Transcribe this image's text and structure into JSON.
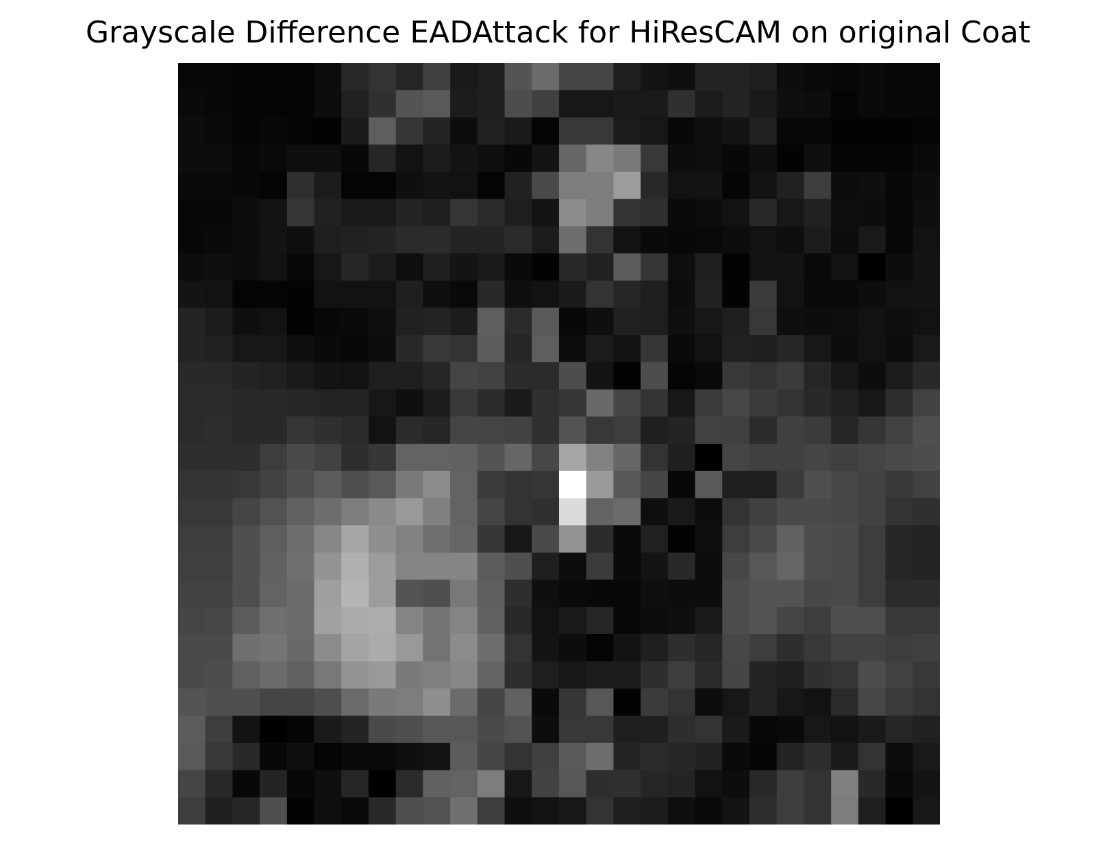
{
  "chart_data": {
    "type": "heatmap",
    "title": "Grayscale Difference EADAttack for HiResCAM on original Coat",
    "xlabel": "",
    "ylabel": "",
    "colormap": "gray",
    "axes": "off",
    "rows": 28,
    "cols": 28,
    "value_range": [
      0,
      1
    ],
    "values": [
      [
        0.03,
        0.03,
        0.02,
        0.02,
        0.02,
        0.05,
        0.16,
        0.2,
        0.15,
        0.25,
        0.1,
        0.12,
        0.33,
        0.42,
        0.27,
        0.27,
        0.12,
        0.08,
        0.06,
        0.14,
        0.14,
        0.12,
        0.05,
        0.04,
        0.03,
        0.04,
        0.03,
        0.03
      ],
      [
        0.04,
        0.03,
        0.02,
        0.02,
        0.02,
        0.05,
        0.13,
        0.19,
        0.33,
        0.35,
        0.11,
        0.12,
        0.3,
        0.25,
        0.09,
        0.09,
        0.1,
        0.1,
        0.19,
        0.11,
        0.14,
        0.1,
        0.06,
        0.05,
        0.02,
        0.04,
        0.03,
        0.03
      ],
      [
        0.05,
        0.04,
        0.02,
        0.03,
        0.02,
        0.01,
        0.1,
        0.37,
        0.21,
        0.14,
        0.05,
        0.13,
        0.1,
        0.02,
        0.22,
        0.22,
        0.11,
        0.09,
        0.03,
        0.06,
        0.08,
        0.13,
        0.03,
        0.03,
        0.01,
        0.01,
        0.01,
        0.02
      ],
      [
        0.05,
        0.05,
        0.03,
        0.04,
        0.06,
        0.06,
        0.03,
        0.15,
        0.07,
        0.11,
        0.08,
        0.06,
        0.03,
        0.08,
        0.4,
        0.53,
        0.48,
        0.22,
        0.05,
        0.06,
        0.03,
        0.06,
        0.01,
        0.06,
        0.02,
        0.02,
        0.02,
        0.04
      ],
      [
        0.04,
        0.04,
        0.03,
        0.02,
        0.19,
        0.11,
        0.02,
        0.02,
        0.06,
        0.08,
        0.07,
        0.02,
        0.13,
        0.29,
        0.49,
        0.49,
        0.61,
        0.16,
        0.07,
        0.08,
        0.02,
        0.07,
        0.13,
        0.24,
        0.05,
        0.06,
        0.03,
        0.05
      ],
      [
        0.03,
        0.03,
        0.05,
        0.07,
        0.21,
        0.13,
        0.1,
        0.1,
        0.14,
        0.12,
        0.21,
        0.17,
        0.12,
        0.08,
        0.55,
        0.49,
        0.2,
        0.19,
        0.04,
        0.05,
        0.07,
        0.16,
        0.09,
        0.13,
        0.06,
        0.05,
        0.03,
        0.06
      ],
      [
        0.03,
        0.04,
        0.05,
        0.08,
        0.06,
        0.12,
        0.13,
        0.14,
        0.17,
        0.17,
        0.14,
        0.14,
        0.17,
        0.11,
        0.43,
        0.2,
        0.07,
        0.04,
        0.03,
        0.04,
        0.05,
        0.07,
        0.06,
        0.11,
        0.05,
        0.1,
        0.03,
        0.07
      ],
      [
        0.05,
        0.06,
        0.05,
        0.07,
        0.03,
        0.09,
        0.15,
        0.11,
        0.06,
        0.12,
        0.08,
        0.1,
        0.04,
        0.01,
        0.16,
        0.13,
        0.36,
        0.21,
        0.06,
        0.12,
        0.01,
        0.07,
        0.08,
        0.04,
        0.07,
        0.0,
        0.05,
        0.08
      ],
      [
        0.08,
        0.07,
        0.02,
        0.02,
        0.01,
        0.07,
        0.07,
        0.07,
        0.12,
        0.06,
        0.04,
        0.16,
        0.06,
        0.07,
        0.1,
        0.2,
        0.15,
        0.12,
        0.05,
        0.13,
        0.01,
        0.23,
        0.07,
        0.04,
        0.04,
        0.05,
        0.07,
        0.08
      ],
      [
        0.14,
        0.11,
        0.06,
        0.07,
        0.01,
        0.03,
        0.04,
        0.06,
        0.13,
        0.14,
        0.11,
        0.37,
        0.17,
        0.35,
        0.03,
        0.06,
        0.13,
        0.12,
        0.06,
        0.09,
        0.12,
        0.22,
        0.06,
        0.05,
        0.06,
        0.07,
        0.06,
        0.07
      ],
      [
        0.14,
        0.13,
        0.09,
        0.09,
        0.06,
        0.04,
        0.03,
        0.05,
        0.16,
        0.22,
        0.2,
        0.36,
        0.15,
        0.37,
        0.05,
        0.11,
        0.07,
        0.21,
        0.04,
        0.07,
        0.13,
        0.12,
        0.15,
        0.09,
        0.05,
        0.07,
        0.05,
        0.1
      ],
      [
        0.16,
        0.16,
        0.14,
        0.13,
        0.1,
        0.08,
        0.07,
        0.12,
        0.12,
        0.15,
        0.27,
        0.26,
        0.17,
        0.17,
        0.3,
        0.08,
        0.01,
        0.3,
        0.02,
        0.04,
        0.22,
        0.2,
        0.23,
        0.15,
        0.09,
        0.05,
        0.11,
        0.16
      ],
      [
        0.17,
        0.17,
        0.16,
        0.16,
        0.15,
        0.14,
        0.14,
        0.09,
        0.06,
        0.11,
        0.22,
        0.17,
        0.1,
        0.19,
        0.21,
        0.41,
        0.27,
        0.2,
        0.09,
        0.23,
        0.28,
        0.23,
        0.2,
        0.16,
        0.13,
        0.09,
        0.18,
        0.26
      ],
      [
        0.17,
        0.18,
        0.16,
        0.16,
        0.21,
        0.19,
        0.17,
        0.07,
        0.17,
        0.15,
        0.27,
        0.27,
        0.26,
        0.19,
        0.32,
        0.22,
        0.24,
        0.12,
        0.14,
        0.26,
        0.25,
        0.17,
        0.25,
        0.23,
        0.15,
        0.21,
        0.26,
        0.31
      ],
      [
        0.18,
        0.18,
        0.18,
        0.24,
        0.29,
        0.26,
        0.18,
        0.21,
        0.39,
        0.39,
        0.38,
        0.33,
        0.4,
        0.28,
        0.65,
        0.51,
        0.4,
        0.2,
        0.12,
        0.0,
        0.27,
        0.25,
        0.25,
        0.27,
        0.25,
        0.27,
        0.29,
        0.3
      ],
      [
        0.2,
        0.2,
        0.22,
        0.26,
        0.31,
        0.36,
        0.31,
        0.35,
        0.48,
        0.55,
        0.39,
        0.23,
        0.2,
        0.21,
        1.0,
        0.6,
        0.34,
        0.27,
        0.03,
        0.35,
        0.12,
        0.12,
        0.23,
        0.31,
        0.28,
        0.26,
        0.22,
        0.26
      ],
      [
        0.22,
        0.22,
        0.27,
        0.32,
        0.38,
        0.43,
        0.49,
        0.54,
        0.6,
        0.5,
        0.39,
        0.27,
        0.2,
        0.19,
        0.86,
        0.39,
        0.42,
        0.06,
        0.1,
        0.05,
        0.2,
        0.25,
        0.29,
        0.29,
        0.28,
        0.26,
        0.2,
        0.19
      ],
      [
        0.24,
        0.24,
        0.31,
        0.37,
        0.43,
        0.53,
        0.65,
        0.56,
        0.51,
        0.44,
        0.4,
        0.21,
        0.09,
        0.29,
        0.58,
        0.17,
        0.04,
        0.13,
        0.01,
        0.06,
        0.24,
        0.29,
        0.38,
        0.3,
        0.29,
        0.24,
        0.15,
        0.14
      ],
      [
        0.25,
        0.25,
        0.31,
        0.38,
        0.44,
        0.58,
        0.69,
        0.61,
        0.52,
        0.52,
        0.52,
        0.36,
        0.31,
        0.12,
        0.05,
        0.23,
        0.04,
        0.08,
        0.16,
        0.05,
        0.28,
        0.34,
        0.4,
        0.3,
        0.29,
        0.24,
        0.15,
        0.14
      ],
      [
        0.26,
        0.26,
        0.31,
        0.39,
        0.42,
        0.62,
        0.71,
        0.61,
        0.33,
        0.31,
        0.47,
        0.37,
        0.18,
        0.06,
        0.04,
        0.03,
        0.03,
        0.06,
        0.05,
        0.05,
        0.3,
        0.33,
        0.33,
        0.28,
        0.29,
        0.24,
        0.17,
        0.17
      ],
      [
        0.27,
        0.28,
        0.36,
        0.44,
        0.42,
        0.63,
        0.67,
        0.68,
        0.52,
        0.46,
        0.52,
        0.38,
        0.16,
        0.07,
        0.1,
        0.15,
        0.03,
        0.05,
        0.06,
        0.1,
        0.3,
        0.33,
        0.27,
        0.24,
        0.31,
        0.31,
        0.22,
        0.22
      ],
      [
        0.29,
        0.29,
        0.44,
        0.46,
        0.41,
        0.55,
        0.64,
        0.67,
        0.6,
        0.45,
        0.55,
        0.43,
        0.2,
        0.08,
        0.05,
        0.02,
        0.08,
        0.12,
        0.18,
        0.15,
        0.28,
        0.24,
        0.18,
        0.22,
        0.26,
        0.26,
        0.24,
        0.25
      ],
      [
        0.29,
        0.3,
        0.38,
        0.42,
        0.38,
        0.47,
        0.58,
        0.6,
        0.48,
        0.5,
        0.53,
        0.39,
        0.18,
        0.12,
        0.09,
        0.11,
        0.11,
        0.18,
        0.24,
        0.17,
        0.27,
        0.14,
        0.12,
        0.19,
        0.21,
        0.3,
        0.26,
        0.22
      ],
      [
        0.33,
        0.31,
        0.31,
        0.27,
        0.27,
        0.31,
        0.42,
        0.48,
        0.49,
        0.56,
        0.42,
        0.27,
        0.38,
        0.04,
        0.21,
        0.34,
        0.01,
        0.23,
        0.2,
        0.05,
        0.09,
        0.14,
        0.09,
        0.07,
        0.17,
        0.28,
        0.23,
        0.2
      ],
      [
        0.36,
        0.24,
        0.07,
        0.0,
        0.02,
        0.1,
        0.14,
        0.29,
        0.31,
        0.34,
        0.34,
        0.29,
        0.32,
        0.05,
        0.22,
        0.22,
        0.12,
        0.12,
        0.18,
        0.2,
        0.1,
        0.03,
        0.04,
        0.09,
        0.07,
        0.1,
        0.15,
        0.13
      ],
      [
        0.35,
        0.22,
        0.16,
        0.03,
        0.06,
        0.02,
        0.04,
        0.04,
        0.06,
        0.08,
        0.36,
        0.27,
        0.2,
        0.25,
        0.35,
        0.43,
        0.14,
        0.17,
        0.15,
        0.13,
        0.04,
        0.02,
        0.14,
        0.18,
        0.1,
        0.2,
        0.05,
        0.1
      ],
      [
        0.27,
        0.16,
        0.03,
        0.14,
        0.03,
        0.06,
        0.15,
        0.0,
        0.17,
        0.38,
        0.39,
        0.49,
        0.09,
        0.26,
        0.34,
        0.18,
        0.19,
        0.15,
        0.14,
        0.07,
        0.05,
        0.16,
        0.24,
        0.2,
        0.5,
        0.16,
        0.04,
        0.08
      ],
      [
        0.24,
        0.12,
        0.15,
        0.31,
        0.01,
        0.06,
        0.04,
        0.16,
        0.31,
        0.32,
        0.44,
        0.24,
        0.06,
        0.07,
        0.09,
        0.2,
        0.12,
        0.11,
        0.06,
        0.04,
        0.08,
        0.18,
        0.24,
        0.2,
        0.49,
        0.12,
        0.0,
        0.09
      ]
    ]
  }
}
